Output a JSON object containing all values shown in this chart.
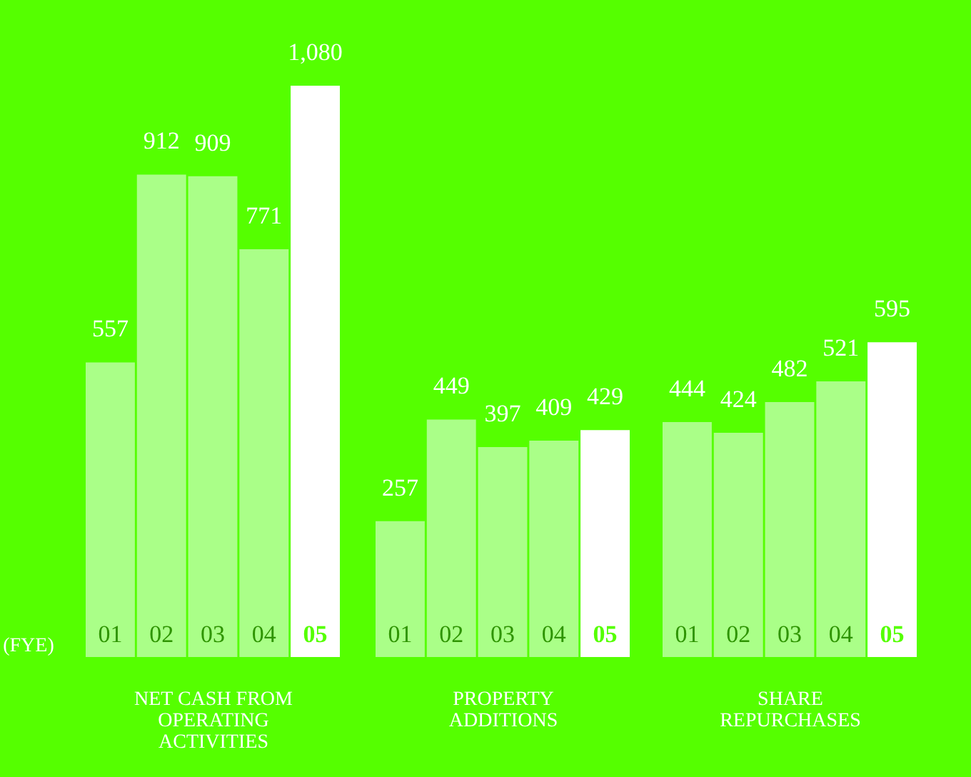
{
  "chart_data": [
    {
      "type": "bar",
      "xlabel": "NET CASH FROM OPERATING ACTIVITIES",
      "categories": [
        "01",
        "02",
        "03",
        "04",
        "05"
      ],
      "values": [
        557,
        912,
        909,
        771,
        1080
      ],
      "colors": [
        "#aaff88",
        "#aaff88",
        "#aaff88",
        "#aaff88",
        "#ffffff"
      ],
      "data_labels": true,
      "value_labels": [
        "557",
        "912",
        "909",
        "771",
        "1,080"
      ],
      "annotations": [
        "(FYE)"
      ]
    },
    {
      "type": "bar",
      "xlabel": "PROPERTY ADDITIONS",
      "categories": [
        "01",
        "02",
        "03",
        "04",
        "05"
      ],
      "values": [
        257,
        449,
        397,
        409,
        429
      ],
      "colors": [
        "#aaff88",
        "#aaff88",
        "#aaff88",
        "#aaff88",
        "#ffffff"
      ],
      "data_labels": true
    },
    {
      "type": "bar",
      "xlabel": "SHARE REPURCHASES",
      "categories": [
        "01",
        "02",
        "03",
        "04",
        "05"
      ],
      "values": [
        444,
        424,
        482,
        521,
        595
      ],
      "colors": [
        "#aaff88",
        "#aaff88",
        "#aaff88",
        "#aaff88",
        "#ffffff"
      ],
      "data_labels": true
    }
  ]
}
